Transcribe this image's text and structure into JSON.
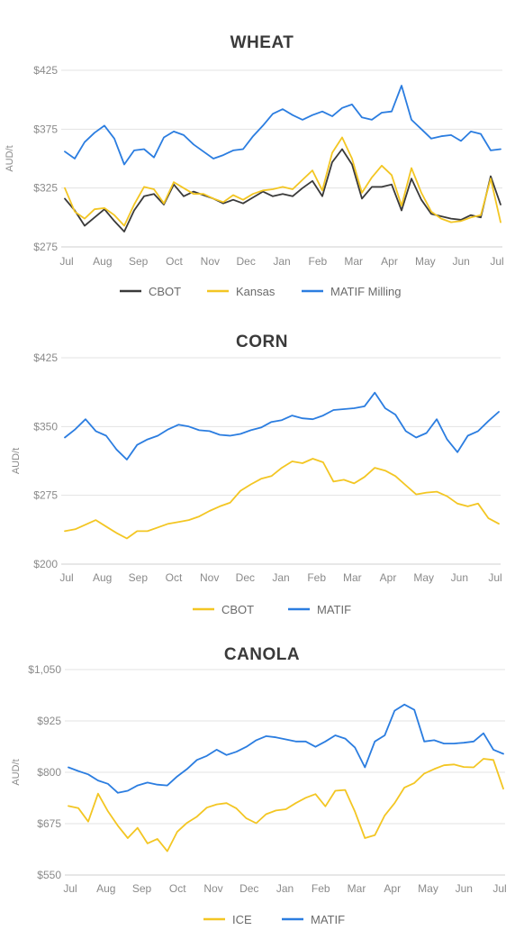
{
  "colors": {
    "dark": "#3a3a3a",
    "yellow": "#f3c623",
    "blue": "#2b7de0"
  },
  "chart_data": [
    {
      "type": "line",
      "title": "WHEAT",
      "ylabel": "AUD/t",
      "ylim": [
        275,
        425
      ],
      "yticks": [
        275,
        325,
        375,
        425
      ],
      "ytick_labels": [
        "$275",
        "$325",
        "$375",
        "$425"
      ],
      "months": [
        "Jul",
        "Aug",
        "Sep",
        "Oct",
        "Nov",
        "Dec",
        "Jan",
        "Feb",
        "Mar",
        "Apr",
        "May",
        "Jun",
        "Jul"
      ],
      "series": [
        {
          "name": "CBOT",
          "color": "#3a3a3a",
          "values": [
            316,
            306,
            293,
            300,
            307,
            297,
            288,
            306,
            318,
            320,
            311,
            328,
            318,
            322,
            319,
            316,
            312,
            315,
            312,
            317,
            322,
            318,
            320,
            318,
            325,
            331,
            318,
            347,
            358,
            345,
            316,
            326,
            326,
            328,
            306,
            333,
            315,
            303,
            301,
            299,
            298,
            302,
            300,
            335,
            311
          ]
        },
        {
          "name": "Kansas",
          "color": "#f3c623",
          "values": [
            325,
            305,
            299,
            307,
            308,
            302,
            293,
            311,
            326,
            324,
            312,
            330,
            325,
            320,
            320,
            316,
            313,
            319,
            315,
            320,
            323,
            324,
            326,
            324,
            332,
            340,
            323,
            355,
            368,
            350,
            321,
            334,
            344,
            336,
            310,
            342,
            321,
            305,
            299,
            296,
            297,
            300,
            302,
            333,
            296
          ]
        },
        {
          "name": "MATIF Milling",
          "color": "#2b7de0",
          "values": [
            356,
            350,
            364,
            372,
            378,
            367,
            345,
            357,
            358,
            351,
            368,
            373,
            370,
            362,
            356,
            350,
            353,
            357,
            358,
            369,
            378,
            388,
            392,
            387,
            383,
            387,
            390,
            386,
            393,
            396,
            385,
            383,
            389,
            390,
            412,
            383,
            375,
            367,
            369,
            370,
            365,
            373,
            371,
            357,
            358
          ]
        }
      ]
    },
    {
      "type": "line",
      "title": "CORN",
      "ylabel": "AUD/t",
      "ylim": [
        200,
        425
      ],
      "yticks": [
        200,
        275,
        350,
        425
      ],
      "ytick_labels": [
        "$200",
        "$275",
        "$350",
        "$425"
      ],
      "months": [
        "Jul",
        "Aug",
        "Sep",
        "Oct",
        "Nov",
        "Dec",
        "Jan",
        "Feb",
        "Mar",
        "Apr",
        "May",
        "Jun",
        "Jul"
      ],
      "series": [
        {
          "name": "CBOT",
          "color": "#f3c623",
          "values": [
            236,
            238,
            243,
            248,
            241,
            234,
            228,
            236,
            236,
            240,
            244,
            246,
            248,
            252,
            258,
            263,
            267,
            280,
            287,
            293,
            296,
            305,
            312,
            310,
            315,
            311,
            290,
            292,
            288,
            295,
            305,
            302,
            296,
            286,
            276,
            278,
            279,
            274,
            266,
            263,
            266,
            250,
            244
          ]
        },
        {
          "name": "MATIF",
          "color": "#2b7de0",
          "values": [
            338,
            347,
            358,
            345,
            340,
            325,
            314,
            330,
            336,
            340,
            347,
            352,
            350,
            346,
            345,
            341,
            340,
            342,
            346,
            349,
            355,
            357,
            362,
            359,
            358,
            362,
            368,
            369,
            370,
            372,
            387,
            370,
            363,
            345,
            338,
            343,
            358,
            336,
            322,
            340,
            345,
            356,
            366
          ]
        }
      ]
    },
    {
      "type": "line",
      "title": "CANOLA",
      "ylabel": "AUD/t",
      "ylim": [
        550,
        1050
      ],
      "yticks": [
        550,
        675,
        800,
        925,
        1050
      ],
      "ytick_labels": [
        "$550",
        "$675",
        "$800",
        "$925",
        "$1,050"
      ],
      "months": [
        "Jul",
        "Aug",
        "Sep",
        "Oct",
        "Nov",
        "Dec",
        "Jan",
        "Feb",
        "Mar",
        "Apr",
        "May",
        "Jun",
        "Jul"
      ],
      "series": [
        {
          "name": "ICE",
          "color": "#f3c623",
          "values": [
            718,
            713,
            680,
            748,
            705,
            670,
            640,
            665,
            627,
            638,
            608,
            655,
            677,
            692,
            714,
            722,
            725,
            712,
            688,
            676,
            698,
            707,
            710,
            725,
            738,
            747,
            717,
            755,
            757,
            704,
            640,
            647,
            695,
            725,
            763,
            774,
            797,
            808,
            817,
            819,
            813,
            812,
            833,
            830,
            760
          ]
        },
        {
          "name": "MATIF",
          "color": "#2b7de0",
          "values": [
            812,
            803,
            795,
            780,
            772,
            750,
            755,
            768,
            775,
            770,
            768,
            790,
            808,
            830,
            840,
            855,
            842,
            850,
            862,
            878,
            888,
            885,
            880,
            875,
            875,
            862,
            875,
            890,
            882,
            860,
            812,
            875,
            890,
            950,
            965,
            952,
            875,
            878,
            870,
            870,
            872,
            875,
            895,
            855,
            845
          ]
        }
      ]
    }
  ],
  "legends": [
    [
      "CBOT",
      "Kansas",
      "MATIF Milling"
    ],
    [
      "CBOT",
      "MATIF"
    ],
    [
      "ICE",
      "MATIF"
    ]
  ]
}
